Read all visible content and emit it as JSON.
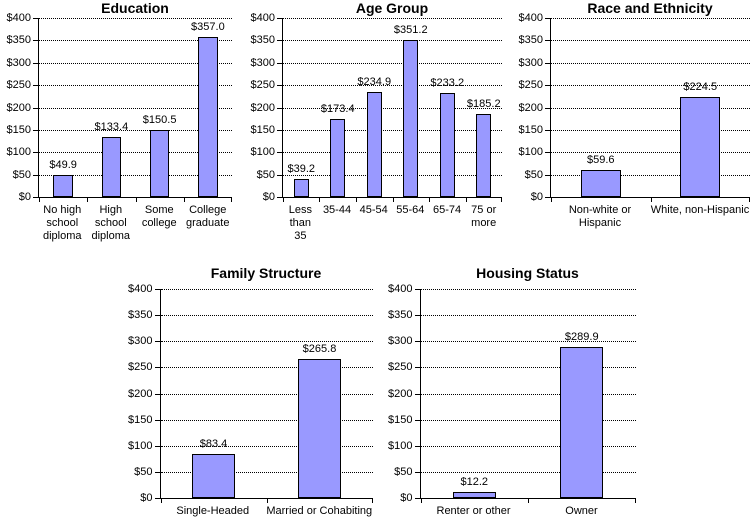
{
  "figure": {
    "background": "#FFFFFF",
    "description": "Five bar charts of median dollar amounts by demographic group"
  },
  "style": {
    "bar_fill": "#9999FF",
    "bar_border": "#000000",
    "gridline_color": "#000000",
    "gridline_style": "dotted",
    "text_color": "#000000"
  },
  "y_axis": {
    "ylim": [
      0,
      400
    ],
    "tick_step": 50,
    "ticks": [
      0,
      50,
      100,
      150,
      200,
      250,
      300,
      350,
      400
    ],
    "tick_labels": [
      "$0",
      "$50",
      "$100",
      "$150",
      "$200",
      "$250",
      "$300",
      "$350",
      "$400"
    ]
  },
  "chart_data": [
    {
      "id": "education",
      "type": "bar",
      "title": "Education",
      "categories": [
        "No high\nschool\ndiploma",
        "High\nschool\ndiploma",
        "Some\ncollege",
        "College\ngraduate"
      ],
      "values": [
        49.9,
        133.4,
        150.5,
        357.0
      ],
      "value_labels": [
        "$49.9",
        "$133.4",
        "$150.5",
        "$357.0"
      ],
      "xlabel": "",
      "ylabel": "",
      "ylim": [
        0,
        400
      ],
      "grid": true,
      "legend": "none"
    },
    {
      "id": "age-group",
      "type": "bar",
      "title": "Age Group",
      "categories": [
        "Less\nthan\n35",
        "35-44",
        "45-54",
        "55-64",
        "65-74",
        "75 or\nmore"
      ],
      "values": [
        39.2,
        173.4,
        234.9,
        351.2,
        233.2,
        185.2
      ],
      "value_labels": [
        "$39.2",
        "$173.4",
        "$234.9",
        "$351.2",
        "$233.2",
        "$185.2"
      ],
      "xlabel": "",
      "ylabel": "",
      "ylim": [
        0,
        400
      ],
      "grid": true,
      "legend": "none"
    },
    {
      "id": "race-ethnicity",
      "type": "bar",
      "title": "Race and Ethnicity",
      "categories": [
        "Non-white or\nHispanic",
        "White, non-Hispanic"
      ],
      "values": [
        59.6,
        224.5
      ],
      "value_labels": [
        "$59.6",
        "$224.5"
      ],
      "xlabel": "",
      "ylabel": "",
      "ylim": [
        0,
        400
      ],
      "grid": true,
      "legend": "none"
    },
    {
      "id": "family-structure",
      "type": "bar",
      "title": "Family Structure",
      "categories": [
        "Single-Headed",
        "Married or Cohabiting"
      ],
      "values": [
        83.4,
        265.8
      ],
      "value_labels": [
        "$83.4",
        "$265.8"
      ],
      "xlabel": "",
      "ylabel": "",
      "ylim": [
        0,
        400
      ],
      "grid": true,
      "legend": "none"
    },
    {
      "id": "housing-status",
      "type": "bar",
      "title": "Housing Status",
      "categories": [
        "Renter or other",
        "Owner"
      ],
      "values": [
        12.2,
        289.9
      ],
      "value_labels": [
        "$12.2",
        "$289.9"
      ],
      "xlabel": "",
      "ylabel": "",
      "ylim": [
        0,
        400
      ],
      "grid": true,
      "legend": "none"
    }
  ]
}
